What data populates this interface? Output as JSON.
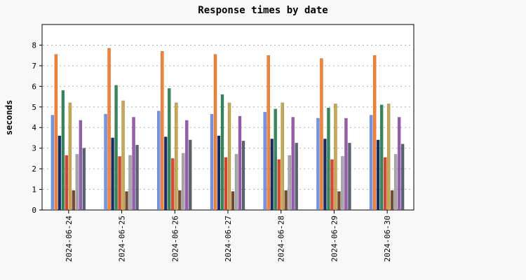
{
  "chart_data": {
    "type": "bar",
    "title": "Response times by date",
    "xlabel": "",
    "ylabel": "seconds",
    "ylim": [
      0,
      9
    ],
    "yticks": [
      0,
      1,
      2,
      3,
      4,
      5,
      6,
      7,
      8
    ],
    "grid": "horizontal dotted",
    "legend": "none",
    "categories": [
      "2024-06-24",
      "2024-06-25",
      "2024-06-26",
      "2024-06-27",
      "2024-06-28",
      "2024-06-29",
      "2024-06-30"
    ],
    "series": [
      {
        "color": "#6f95f0",
        "values": [
          4.6,
          4.65,
          4.8,
          4.65,
          4.75,
          4.45,
          4.6
        ]
      },
      {
        "color": "#ff7f2a",
        "values": [
          7.55,
          7.85,
          7.7,
          7.55,
          7.5,
          7.35,
          7.5
        ]
      },
      {
        "color": "#142c6e",
        "values": [
          3.6,
          3.5,
          3.55,
          3.6,
          3.45,
          3.45,
          3.4
        ]
      },
      {
        "color": "#2e8b57",
        "values": [
          5.8,
          6.05,
          5.9,
          5.6,
          4.9,
          4.95,
          5.1
        ]
      },
      {
        "color": "#e8412a",
        "values": [
          2.65,
          2.6,
          2.5,
          2.55,
          2.45,
          2.45,
          2.55
        ]
      },
      {
        "color": "#c9a94a",
        "values": [
          5.2,
          5.3,
          5.2,
          5.2,
          5.2,
          5.15,
          5.15
        ]
      },
      {
        "color": "#7a4a30",
        "values": [
          0.95,
          0.9,
          0.95,
          0.9,
          0.95,
          0.9,
          0.95
        ]
      },
      {
        "color": "#a8a8a8",
        "values": [
          2.7,
          2.65,
          2.75,
          2.7,
          2.65,
          2.6,
          2.7
        ]
      },
      {
        "color": "#9b59b6",
        "values": [
          4.35,
          4.5,
          4.35,
          4.55,
          4.5,
          4.45,
          4.5
        ]
      },
      {
        "color": "#5a6470",
        "values": [
          3.0,
          3.15,
          3.4,
          3.35,
          3.25,
          3.25,
          3.2
        ]
      }
    ]
  }
}
